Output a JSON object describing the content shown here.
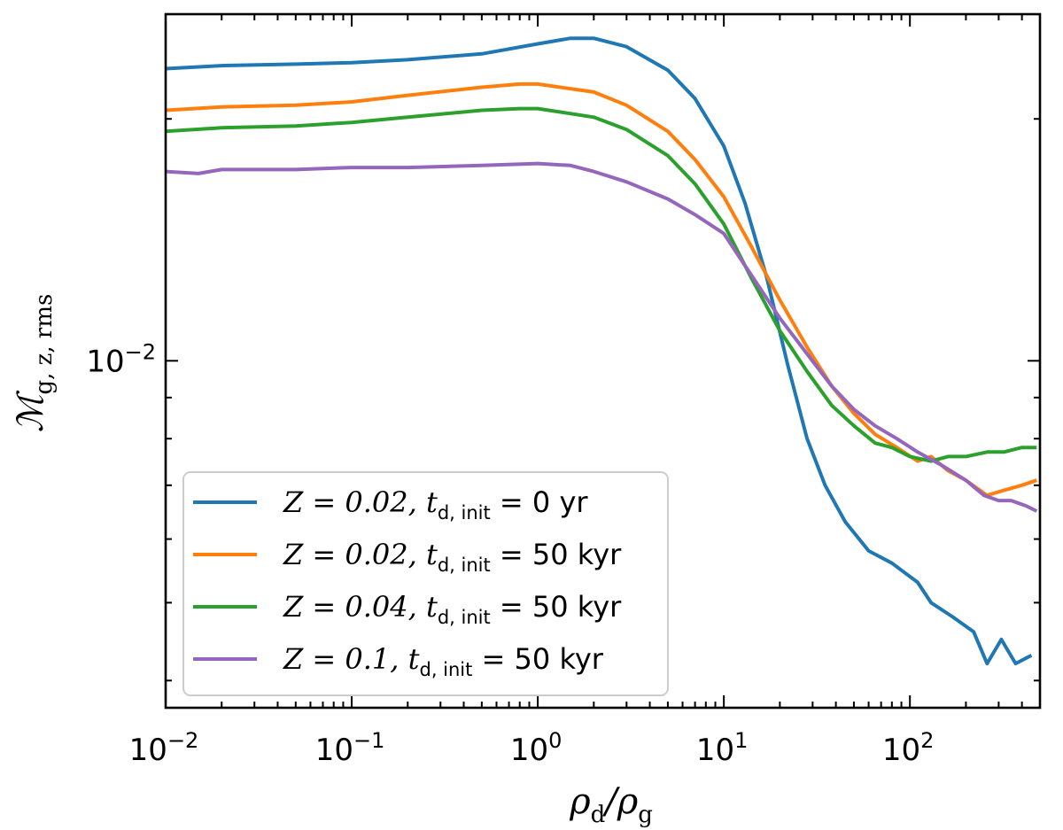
{
  "chart_data": {
    "type": "line",
    "xscale": "log",
    "yscale": "log",
    "xlim": [
      0.01,
      500
    ],
    "ylim": [
      0.0037,
      0.027
    ],
    "xlabel": {
      "main": "ρ",
      "sub1": "d",
      "sep": "/",
      "main2": "ρ",
      "sub2": "g"
    },
    "ylabel": {
      "main": "ℳ",
      "sub": "g, z, rms"
    },
    "x_ticks": [
      {
        "value": 0.01,
        "base": "10",
        "exp": "−2"
      },
      {
        "value": 0.1,
        "base": "10",
        "exp": "−1"
      },
      {
        "value": 1,
        "base": "10",
        "exp": "0"
      },
      {
        "value": 10,
        "base": "10",
        "exp": "1"
      },
      {
        "value": 100,
        "base": "10",
        "exp": "2"
      }
    ],
    "y_ticks": [
      {
        "value": 0.01,
        "base": "10",
        "exp": "−2"
      }
    ],
    "legend_position": "lower-left",
    "series": [
      {
        "name": "blue",
        "color": "#1f77b4",
        "label": {
          "z": "Z = 0.02, ",
          "t": "t",
          "tsub": "d, init",
          "rest": " = 0 yr"
        },
        "x": [
          0.01,
          0.02,
          0.05,
          0.1,
          0.2,
          0.5,
          1.0,
          1.5,
          2.0,
          3.0,
          5.0,
          7.0,
          10.0,
          13.0,
          17.0,
          22.0,
          28.0,
          35.0,
          45.0,
          60.0,
          80.0,
          110.0,
          130.0,
          170.0,
          220.0,
          260.0,
          310.0,
          370.0,
          450.0
        ],
        "values": [
          0.0231,
          0.0233,
          0.0234,
          0.0235,
          0.0237,
          0.0241,
          0.0248,
          0.0252,
          0.0252,
          0.0246,
          0.023,
          0.0212,
          0.0185,
          0.0157,
          0.0127,
          0.0099,
          0.008,
          0.007,
          0.0063,
          0.0058,
          0.0056,
          0.0053,
          0.005,
          0.0048,
          0.0046,
          0.0042,
          0.0045,
          0.0042,
          0.0043
        ]
      },
      {
        "name": "orange",
        "color": "#ff7f0e",
        "label": {
          "z": "Z = 0.02, ",
          "t": "t",
          "tsub": "d, init",
          "rest": " = 50 kyr"
        },
        "x": [
          0.01,
          0.02,
          0.05,
          0.1,
          0.2,
          0.5,
          0.8,
          1.0,
          2.0,
          3.0,
          5.0,
          7.0,
          10.0,
          14.0,
          20.0,
          28.0,
          38.0,
          50.0,
          65.0,
          85.0,
          110.0,
          130.0,
          160.0,
          200.0,
          260.0,
          320.0,
          400.0,
          480.0
        ],
        "values": [
          0.0205,
          0.0207,
          0.0208,
          0.021,
          0.0214,
          0.0219,
          0.0221,
          0.0221,
          0.0216,
          0.0208,
          0.0193,
          0.0178,
          0.016,
          0.0139,
          0.0119,
          0.0104,
          0.0093,
          0.0086,
          0.0081,
          0.0078,
          0.0075,
          0.0076,
          0.0073,
          0.0071,
          0.0068,
          0.0069,
          0.007,
          0.0071
        ]
      },
      {
        "name": "green",
        "color": "#2ca02c",
        "label": {
          "z": "Z = 0.04, ",
          "t": "t",
          "tsub": "d, init",
          "rest": " = 50 kyr"
        },
        "x": [
          0.01,
          0.02,
          0.05,
          0.1,
          0.2,
          0.5,
          0.8,
          1.0,
          2.0,
          3.0,
          5.0,
          7.0,
          10.0,
          14.0,
          20.0,
          28.0,
          38.0,
          50.0,
          65.0,
          80.0,
          100.0,
          130.0,
          160.0,
          200.0,
          260.0,
          320.0,
          400.0,
          480.0
        ],
        "values": [
          0.0193,
          0.0195,
          0.0196,
          0.0198,
          0.0201,
          0.0205,
          0.0206,
          0.0206,
          0.0201,
          0.0194,
          0.018,
          0.0166,
          0.0148,
          0.0127,
          0.0109,
          0.0097,
          0.0088,
          0.0083,
          0.0079,
          0.0078,
          0.0076,
          0.0075,
          0.0076,
          0.0076,
          0.0077,
          0.0077,
          0.0078,
          0.0078
        ]
      },
      {
        "name": "purple",
        "color": "#9467bd",
        "label": {
          "z": "Z = 0.1, ",
          "t": "t",
          "tsub": "d, init",
          "rest": " = 50 kyr"
        },
        "x": [
          0.01,
          0.015,
          0.02,
          0.05,
          0.1,
          0.2,
          0.5,
          1.0,
          1.5,
          2.0,
          3.0,
          5.0,
          7.0,
          10.0,
          14.0,
          20.0,
          28.0,
          38.0,
          50.0,
          65.0,
          85.0,
          110.0,
          150.0,
          200.0,
          250.0,
          300.0,
          350.0,
          420.0,
          480.0
        ],
        "values": [
          0.0172,
          0.0171,
          0.0173,
          0.0173,
          0.0174,
          0.0174,
          0.0175,
          0.0176,
          0.0175,
          0.0172,
          0.0167,
          0.0159,
          0.0152,
          0.0144,
          0.0128,
          0.0113,
          0.0102,
          0.0093,
          0.0087,
          0.0083,
          0.008,
          0.0077,
          0.0074,
          0.0071,
          0.0068,
          0.0067,
          0.0067,
          0.0066,
          0.0065
        ]
      }
    ]
  }
}
